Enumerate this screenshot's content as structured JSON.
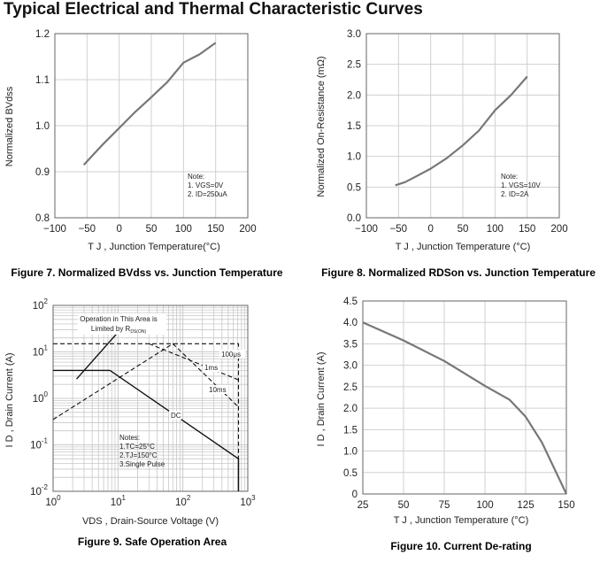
{
  "page": {
    "title": "Typical Electrical and Thermal Characteristic Curves"
  },
  "chart_data": [
    {
      "type": "line",
      "figure": "fig7",
      "caption": "Figure 7. Normalized BVdss vs. Junction Temperature",
      "xlabel": "T J , Junction Temperature(°C)",
      "ylabel": "Normalized BVdss",
      "xlim": [
        -100,
        200
      ],
      "ylim": [
        0.8,
        1.2
      ],
      "xticks": [
        "−100",
        "−50",
        "0",
        "50",
        "100",
        "150",
        "200"
      ],
      "xtick_values": [
        -100,
        -50,
        0,
        50,
        100,
        150,
        200
      ],
      "yticks": [
        "0.8",
        "0.9",
        "1.0",
        "1.1",
        "1.2"
      ],
      "ytick_values": [
        0.8,
        0.9,
        1.0,
        1.1,
        1.2
      ],
      "grid": true,
      "line_color": "#777777",
      "notes": [
        "Note:",
        "1. VGS=0V",
        "2. ID=250uA"
      ],
      "series": [
        {
          "x": [
            -55,
            -45,
            -25,
            0,
            25,
            50,
            75,
            100,
            125,
            150
          ],
          "y": [
            0.915,
            0.93,
            0.96,
            0.995,
            1.03,
            1.062,
            1.095,
            1.137,
            1.155,
            1.18
          ]
        }
      ]
    },
    {
      "type": "line",
      "figure": "fig8",
      "caption": "Figure 8. Normalized RDSon vs. Junction Temperature",
      "xlabel": "T J , Junction Temperature (°C)",
      "ylabel": "Normalized On-Resistance (mΩ)",
      "xlim": [
        -100,
        200
      ],
      "ylim": [
        0.0,
        3.0
      ],
      "xticks": [
        "−100",
        "−50",
        "0",
        "50",
        "100",
        "150",
        "200"
      ],
      "xtick_values": [
        -100,
        -50,
        0,
        50,
        100,
        150,
        200
      ],
      "yticks": [
        "0.0",
        "0.5",
        "1.0",
        "1.5",
        "2.0",
        "2.5",
        "3.0"
      ],
      "ytick_values": [
        0,
        0.5,
        1.0,
        1.5,
        2.0,
        2.5,
        3.0
      ],
      "grid": true,
      "line_color": "#777777",
      "notes": [
        "Note:",
        "1. VGS=10V",
        "2. ID=2A"
      ],
      "series": [
        {
          "x": [
            -55,
            -40,
            -25,
            0,
            25,
            50,
            75,
            100,
            125,
            150
          ],
          "y": [
            0.53,
            0.58,
            0.66,
            0.8,
            0.97,
            1.18,
            1.42,
            1.75,
            2.0,
            2.3
          ]
        }
      ]
    },
    {
      "type": "line",
      "figure": "fig9",
      "caption": "Figure 9. Safe Operation Area",
      "xlabel": "VDS , Drain-Source Voltage (V)",
      "ylabel": "I D , Drain Current (A)",
      "xscale": "log",
      "yscale": "log",
      "xlim": [
        1,
        1000
      ],
      "ylim": [
        0.01,
        100
      ],
      "xticks": [
        "10",
        "10",
        "10",
        "10"
      ],
      "xtick_exponents": [
        "0",
        "1",
        "2",
        "3"
      ],
      "xtick_values": [
        1,
        10,
        100,
        1000
      ],
      "yticks": [
        "10",
        "10",
        "10",
        "10",
        "10"
      ],
      "ytick_exponents": [
        "-2",
        "-1",
        "0",
        "1",
        "2"
      ],
      "ytick_values": [
        0.01,
        0.1,
        1,
        10,
        100
      ],
      "grid": true,
      "annotation_limit": [
        "Operation in This Area is",
        "Limited by R",
        "DS(ON)"
      ],
      "curve_labels": [
        "100μs",
        "1ms",
        "10ms",
        "DC"
      ],
      "notes": [
        "Notes:",
        "1.TC=25°C",
        "2.TJ=150°C",
        "3.Single Pulse"
      ],
      "series": [
        {
          "name": "DC",
          "style": "solid",
          "x": [
            1,
            7.5,
            720,
            720
          ],
          "y": [
            4.0,
            4.0,
            0.05,
            0.01
          ]
        },
        {
          "name": "100μs",
          "style": "dashed",
          "x": [
            1,
            70,
            720,
            720
          ],
          "y": [
            15,
            15,
            15,
            0.01
          ]
        },
        {
          "name": "1ms",
          "style": "dashed",
          "x": [
            30,
            720
          ],
          "y": [
            15,
            2.5
          ]
        },
        {
          "name": "10ms",
          "style": "dashed",
          "x": [
            1,
            70,
            720
          ],
          "y": [
            0.35,
            15,
            0.65
          ]
        },
        {
          "name": "RDS(ON) limit",
          "style": "solid",
          "x": [
            2.3,
            15
          ],
          "y": [
            2.6,
            50
          ]
        }
      ]
    },
    {
      "type": "line",
      "figure": "fig10",
      "caption": "Figure 10. Current De-rating",
      "xlabel": "T J , Junction Temperature (°C)",
      "ylabel": "I D , Drain Current (A)",
      "xlim": [
        25,
        150
      ],
      "ylim": [
        0,
        4.5
      ],
      "xticks": [
        "25",
        "50",
        "75",
        "100",
        "125",
        "150"
      ],
      "xtick_values": [
        25,
        50,
        75,
        100,
        125,
        150
      ],
      "yticks": [
        "0",
        "0.5",
        "1.0",
        "1.5",
        "2.0",
        "2.5",
        "3.0",
        "3.5",
        "4.0",
        "4.5"
      ],
      "ytick_values": [
        0,
        0.5,
        1.0,
        1.5,
        2.0,
        2.5,
        3.0,
        3.5,
        4.0,
        4.5
      ],
      "grid": true,
      "line_color": "#777777",
      "series": [
        {
          "x": [
            25,
            50,
            75,
            100,
            115,
            125,
            135,
            150
          ],
          "y": [
            4.0,
            3.58,
            3.1,
            2.52,
            2.2,
            1.8,
            1.2,
            0.0
          ]
        }
      ]
    }
  ]
}
